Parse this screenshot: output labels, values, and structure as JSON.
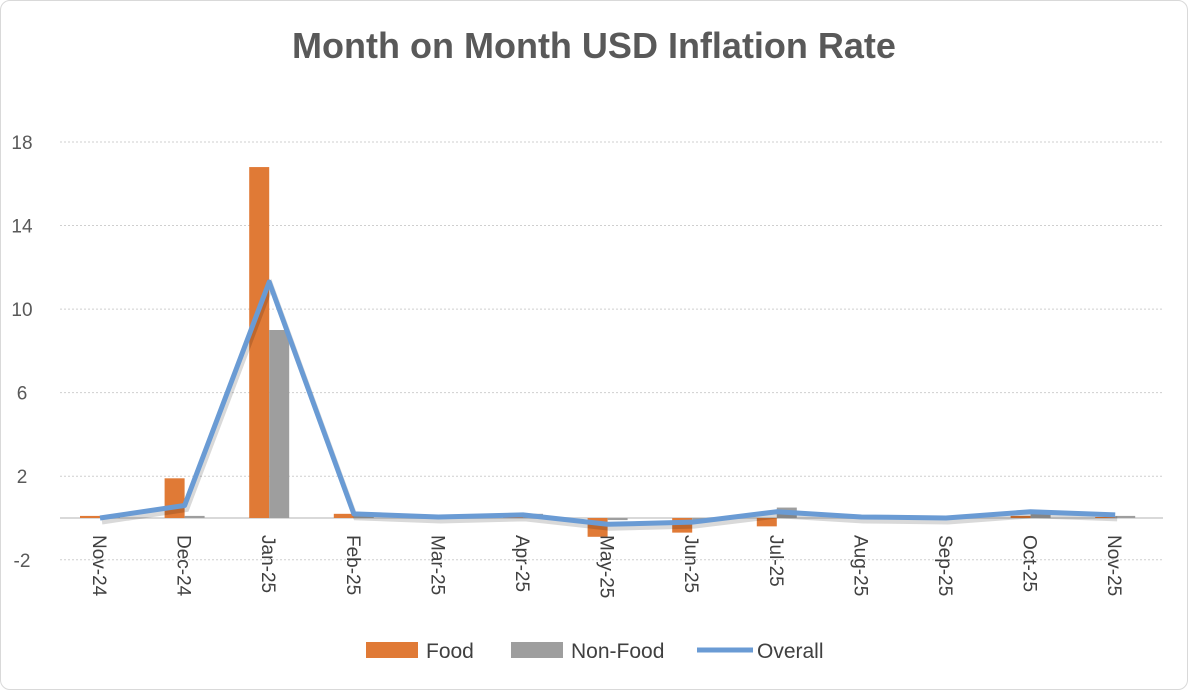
{
  "chart_data": {
    "type": "bar+line",
    "title": "Month on Month USD Inflation Rate",
    "xlabel": "",
    "ylabel": "",
    "ylim": [
      -2,
      18
    ],
    "yticks": [
      -2,
      2,
      6,
      10,
      14,
      18
    ],
    "grid": true,
    "legend_position": "bottom",
    "categories": [
      "Nov-24",
      "Dec-24",
      "Jan-25",
      "Feb-25",
      "Mar-25",
      "Apr-25",
      "May-25",
      "Jun-25",
      "Jul-25",
      "Aug-25",
      "Sep-25",
      "Oct-25",
      "Nov-25"
    ],
    "series": [
      {
        "name": "Food",
        "type": "bar",
        "color": "#E07A36",
        "values": [
          0.1,
          1.9,
          16.8,
          0.2,
          0.05,
          0.1,
          -0.9,
          -0.7,
          -0.4,
          0.05,
          0.0,
          0.1,
          0.05
        ]
      },
      {
        "name": "Non-Food",
        "type": "bar",
        "color": "#9E9E9E",
        "values": [
          0.05,
          0.1,
          9.0,
          0.1,
          0.1,
          0.2,
          -0.1,
          -0.1,
          0.5,
          0.05,
          0.0,
          0.2,
          0.1
        ]
      },
      {
        "name": "Overall",
        "type": "line",
        "color": "#6A9BD4",
        "values": [
          0.0,
          0.6,
          11.3,
          0.2,
          0.05,
          0.15,
          -0.3,
          -0.2,
          0.3,
          0.05,
          0.0,
          0.3,
          0.15
        ]
      }
    ]
  }
}
